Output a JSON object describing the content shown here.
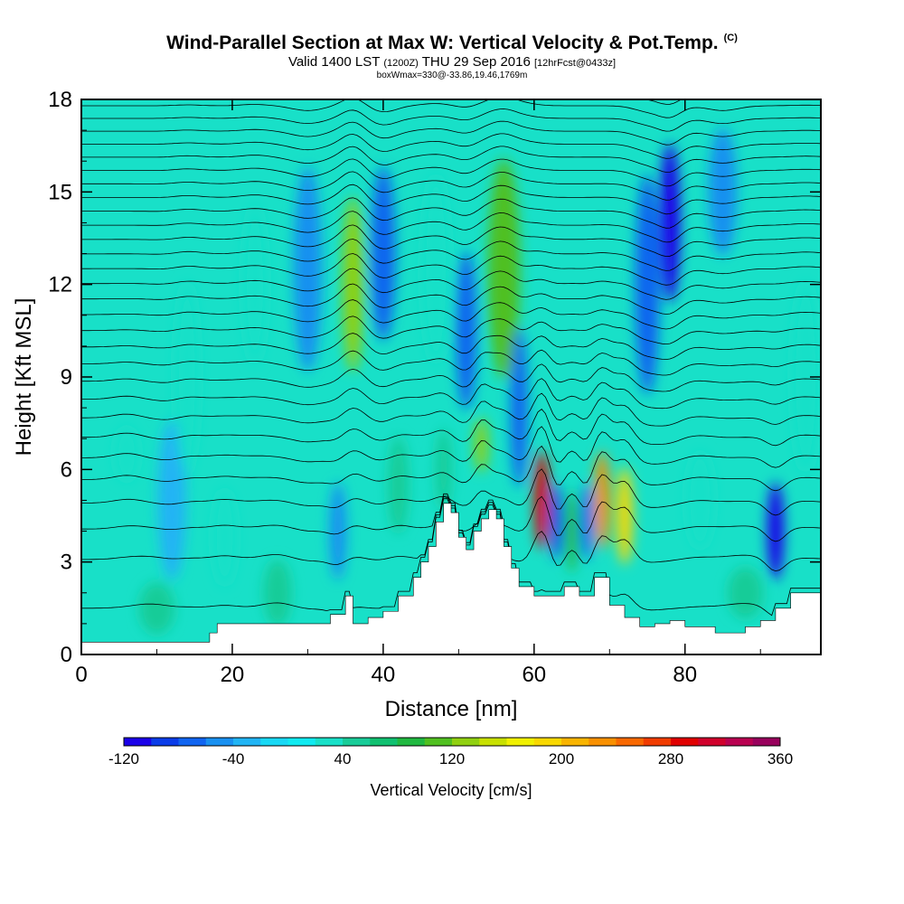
{
  "header": {
    "title": "Wind-Parallel Section at Max W: Vertical Velocity & Pot.Temp.",
    "copyright": "(C)",
    "valid_prefix": "Valid 1400 LST",
    "valid_z": "(1200Z)",
    "valid_date": "THU 29 Sep 2016",
    "forecast": "[12hrFcst@0433z]",
    "boxinfo": "boxWmax=330@-33.86,19.46,1769m"
  },
  "chart_data": {
    "type": "heatmap",
    "title": "Wind-Parallel Section at Max W: Vertical Velocity & Pot.Temp.",
    "xlabel": "Distance [nm]",
    "ylabel": "Height [Kft MSL]",
    "xlim": [
      0,
      98
    ],
    "ylim": [
      0,
      18
    ],
    "xticks": [
      0,
      20,
      40,
      60,
      80
    ],
    "yticks": [
      0,
      3,
      6,
      9,
      12,
      15,
      18
    ],
    "colorbar": {
      "label": "Vertical Velocity [cm/s]",
      "min": -120,
      "max": 360,
      "tick_labels": [
        -120,
        -40,
        40,
        120,
        200,
        280,
        360
      ],
      "colors": [
        "#1a00e8",
        "#0a3ce8",
        "#1064f0",
        "#1890f0",
        "#20b4f4",
        "#18d8f4",
        "#10eaf0",
        "#18e0c8",
        "#18cc98",
        "#10c070",
        "#20b840",
        "#50c020",
        "#90d010",
        "#c8e000",
        "#f0f000",
        "#f8d800",
        "#f8b400",
        "#f89000",
        "#f86800",
        "#f03c00",
        "#e00000",
        "#d0002c",
        "#b80050",
        "#98005c"
      ]
    },
    "annotation": "boxWmax=330@-33.86,19.46,1769m",
    "terrain_profile": {
      "x": [
        0,
        16,
        17,
        18,
        26,
        29,
        31,
        33,
        35,
        36,
        38,
        40,
        42,
        44,
        45,
        46,
        47,
        48,
        49,
        50,
        51,
        52,
        53,
        54,
        55,
        56,
        57,
        58,
        60,
        62,
        64,
        66,
        68,
        70,
        72,
        74,
        76,
        78,
        80,
        84,
        86,
        88,
        90,
        92,
        94,
        96,
        98
      ],
      "y": [
        0.4,
        0.4,
        0.7,
        1.0,
        1.0,
        1.0,
        1.0,
        1.3,
        1.9,
        1.0,
        1.2,
        1.4,
        1.9,
        2.5,
        3.0,
        3.5,
        4.3,
        4.9,
        4.6,
        3.8,
        3.4,
        4.0,
        4.4,
        4.7,
        4.4,
        3.5,
        2.8,
        2.2,
        1.9,
        1.9,
        2.2,
        1.9,
        2.5,
        1.6,
        1.2,
        0.9,
        1.0,
        1.1,
        0.9,
        0.7,
        0.7,
        0.9,
        1.1,
        1.5,
        2.0,
        2.0,
        2.0
      ],
      "units": "Kft MSL"
    },
    "vertical_velocity_features": [
      {
        "x": 6,
        "y": 6.5,
        "w": 2.5,
        "h": 1.6,
        "value": 35
      },
      {
        "x": 12,
        "y": 5.0,
        "w": 3.0,
        "h": 5.0,
        "value": -30
      },
      {
        "x": 14,
        "y": 9.0,
        "w": 2.5,
        "h": 6.0,
        "value": 30
      },
      {
        "x": 19,
        "y": 3.8,
        "w": 2.5,
        "h": 3.0,
        "value": 30
      },
      {
        "x": 23,
        "y": 12.0,
        "w": 2.5,
        "h": 5.0,
        "value": 25
      },
      {
        "x": 30,
        "y": 12.5,
        "w": 3.0,
        "h": 6.5,
        "value": -60
      },
      {
        "x": 34,
        "y": 4.0,
        "w": 1.5,
        "h": 3.0,
        "value": -50
      },
      {
        "x": 36,
        "y": 12.0,
        "w": 2.0,
        "h": 5.5,
        "value": 130
      },
      {
        "x": 40,
        "y": 13.0,
        "w": 2.5,
        "h": 5.5,
        "value": -80
      },
      {
        "x": 42,
        "y": 5.5,
        "w": 2.0,
        "h": 3.0,
        "value": 40
      },
      {
        "x": 47,
        "y": 12.5,
        "w": 3.0,
        "h": 6.0,
        "value": 30
      },
      {
        "x": 48,
        "y": 6.0,
        "w": 1.4,
        "h": 2.5,
        "value": 50
      },
      {
        "x": 51,
        "y": 10.5,
        "w": 2.0,
        "h": 5.0,
        "value": -70
      },
      {
        "x": 53,
        "y": 6.8,
        "w": 1.0,
        "h": 1.6,
        "value": 130
      },
      {
        "x": 56,
        "y": 12.5,
        "w": 3.5,
        "h": 7.0,
        "value": 110
      },
      {
        "x": 58,
        "y": 8.0,
        "w": 1.5,
        "h": 5.0,
        "value": -70
      },
      {
        "x": 61,
        "y": 5.0,
        "w": 1.2,
        "h": 3.0,
        "value": 280
      },
      {
        "x": 63,
        "y": 4.3,
        "w": 0.9,
        "h": 2.3,
        "value": -100
      },
      {
        "x": 65,
        "y": 4.0,
        "w": 0.9,
        "h": 2.5,
        "value": 90
      },
      {
        "x": 67,
        "y": 4.3,
        "w": 0.9,
        "h": 2.3,
        "value": -80
      },
      {
        "x": 69,
        "y": 5.0,
        "w": 1.3,
        "h": 3.0,
        "value": 230
      },
      {
        "x": 72,
        "y": 4.5,
        "w": 1.4,
        "h": 3.0,
        "value": 180
      },
      {
        "x": 75,
        "y": 12.0,
        "w": 2.5,
        "h": 7.0,
        "value": -70
      },
      {
        "x": 78,
        "y": 14.0,
        "w": 2.0,
        "h": 5.0,
        "value": -120
      },
      {
        "x": 82,
        "y": 5.0,
        "w": 3.0,
        "h": 3.0,
        "value": 20
      },
      {
        "x": 85,
        "y": 15.0,
        "w": 3.0,
        "h": 4.0,
        "value": -50
      },
      {
        "x": 92,
        "y": 4.0,
        "w": 1.5,
        "h": 3.0,
        "value": -110
      },
      {
        "x": 96,
        "y": 9.0,
        "w": 3.0,
        "h": 6.0,
        "value": 20
      },
      {
        "x": 10,
        "y": 1.5,
        "w": 4.0,
        "h": 1.5,
        "value": 45
      },
      {
        "x": 26,
        "y": 2.0,
        "w": 3.0,
        "h": 2.0,
        "value": 45
      },
      {
        "x": 88,
        "y": 2.0,
        "w": 4.0,
        "h": 1.5,
        "value": 40
      }
    ],
    "pot_temp_contours": {
      "levels_count": 30,
      "bottom_height": 1.5,
      "top_height": 18.2
    }
  }
}
